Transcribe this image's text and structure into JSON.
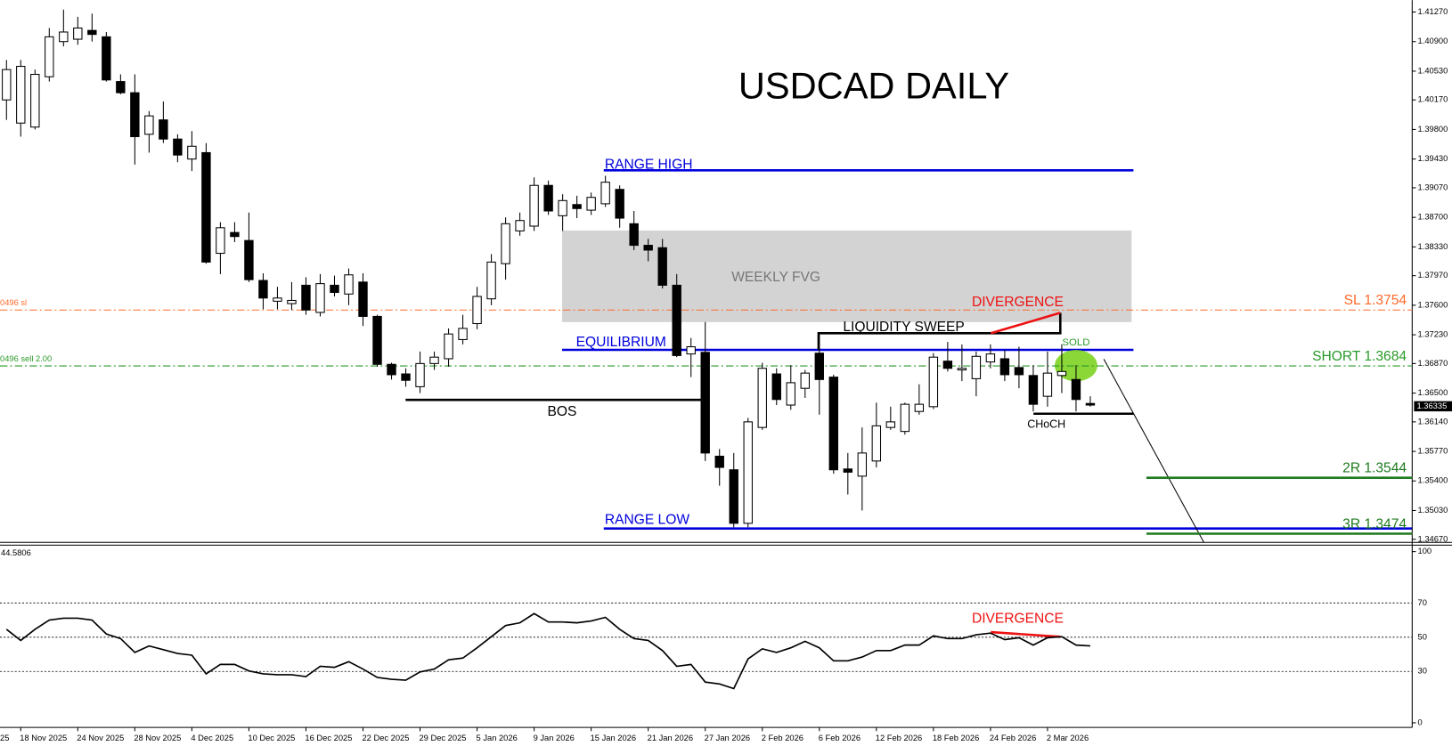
{
  "chart_data": [
    {
      "type": "candlestick",
      "title": "USDCAD DAILY",
      "categories": [
        null,
        "18 Nov 2025",
        null,
        null,
        null,
        "24 Nov 2025",
        null,
        null,
        null,
        "28 Nov 2025",
        null,
        null,
        null,
        "4 Dec 2025",
        null,
        null,
        null,
        "10 Dec 2025",
        null,
        null,
        null,
        "16 Dec 2025",
        null,
        null,
        null,
        "22 Dec 2025",
        null,
        null,
        null,
        "29 Dec 2025",
        null,
        null,
        null,
        "5 Jan 2026",
        null,
        null,
        null,
        "9 Jan 2026",
        null,
        null,
        null,
        "15 Jan 2026",
        null,
        null,
        null,
        "21 Jan 2026",
        null,
        null,
        null,
        "27 Jan 2026",
        null,
        null,
        null,
        "2 Feb 2026",
        null,
        null,
        null,
        "6 Feb 2026",
        null,
        null,
        null,
        "12 Feb 2026",
        null,
        null,
        null,
        "18 Feb 2026",
        null,
        null,
        null,
        "24 Feb 2026",
        null,
        null,
        null,
        "2 Mar 2026",
        null,
        null,
        null
      ],
      "clipped_x_label": "25",
      "open": [
        1.4017,
        1.3988,
        1.3983,
        1.4046,
        1.409,
        1.4093,
        1.4104,
        1.4096,
        1.404,
        1.4026,
        1.3974,
        1.3992,
        1.3968,
        1.3943,
        1.3951,
        1.3825,
        1.3851,
        1.3841,
        1.3791,
        1.3765,
        1.3762,
        1.3785,
        1.3751,
        1.3785,
        1.3774,
        1.3789,
        1.3746,
        1.3686,
        1.3674,
        1.3658,
        1.3687,
        1.3693,
        1.3717,
        1.3737,
        1.3768,
        1.3812,
        1.3853,
        1.3859,
        1.391,
        1.3872,
        1.3886,
        1.3879,
        1.3887,
        1.3905,
        1.3862,
        1.3835,
        1.3832,
        1.3785,
        1.3699,
        1.3701,
        1.3571,
        1.3554,
        1.3487,
        1.3607,
        1.3674,
        1.3635,
        1.3656,
        1.37,
        1.367,
        1.3555,
        1.3546,
        1.3565,
        1.3607,
        1.3602,
        1.3627,
        1.3633,
        1.369,
        1.3679,
        1.3668,
        1.3689,
        1.3693,
        1.3682,
        1.3672,
        1.3646,
        1.3672,
        1.3667,
        1.3637
      ],
      "high": [
        1.4067,
        1.4067,
        1.4055,
        1.4107,
        1.413,
        1.4121,
        1.4125,
        1.4102,
        1.4049,
        1.4049,
        1.4003,
        1.4015,
        1.3974,
        1.3978,
        1.3963,
        1.3864,
        1.3864,
        1.3876,
        1.38,
        1.3783,
        1.3789,
        1.3795,
        1.3799,
        1.3797,
        1.3806,
        1.38,
        1.3748,
        1.3688,
        1.3681,
        1.3702,
        1.3702,
        1.3731,
        1.3748,
        1.3783,
        1.3824,
        1.387,
        1.3876,
        1.392,
        1.3916,
        1.3899,
        1.3897,
        1.3901,
        1.3922,
        1.391,
        1.3878,
        1.3843,
        1.3843,
        1.3799,
        1.3719,
        1.3739,
        1.358,
        1.3575,
        1.3619,
        1.3688,
        1.3681,
        1.3685,
        1.3679,
        1.3723,
        1.3673,
        1.3575,
        1.3607,
        1.3638,
        1.3633,
        1.3638,
        1.3661,
        1.37,
        1.3714,
        1.3711,
        1.3702,
        1.3711,
        1.3704,
        1.3708,
        1.3685,
        1.3702,
        1.3711,
        1.3685,
        1.3646
      ],
      "low": [
        1.3992,
        1.3971,
        1.398,
        1.404,
        1.4084,
        1.4086,
        1.409,
        1.404,
        1.4024,
        1.3936,
        1.3951,
        1.3963,
        1.3939,
        1.3928,
        1.3812,
        1.3799,
        1.3839,
        1.3789,
        1.3755,
        1.3755,
        1.3754,
        1.3748,
        1.3746,
        1.3771,
        1.376,
        1.3734,
        1.3683,
        1.3667,
        1.3658,
        1.365,
        1.3679,
        1.3683,
        1.3711,
        1.373,
        1.376,
        1.3792,
        1.3847,
        1.3853,
        1.3873,
        1.3853,
        1.3869,
        1.3873,
        1.3883,
        1.3857,
        1.3829,
        1.3815,
        1.3781,
        1.3695,
        1.367,
        1.3565,
        1.3534,
        1.3482,
        1.3482,
        1.3604,
        1.3635,
        1.3629,
        1.3644,
        1.3623,
        1.3549,
        1.3523,
        1.3503,
        1.3557,
        1.3604,
        1.3598,
        1.3623,
        1.363,
        1.3677,
        1.3665,
        1.3646,
        1.3681,
        1.3665,
        1.3656,
        1.3627,
        1.3633,
        1.365,
        1.3627,
        1.3633
      ],
      "close": [
        1.4055,
        1.4059,
        1.4049,
        1.4096,
        1.4102,
        1.4107,
        1.4099,
        1.4042,
        1.4026,
        1.3971,
        1.3997,
        1.3968,
        1.3948,
        1.3959,
        1.3814,
        1.3857,
        1.3846,
        1.3792,
        1.3769,
        1.3769,
        1.3766,
        1.3754,
        1.3787,
        1.3776,
        1.3798,
        1.3746,
        1.3686,
        1.3673,
        1.3666,
        1.3687,
        1.3695,
        1.3724,
        1.3731,
        1.3771,
        1.3814,
        1.3862,
        1.3866,
        1.391,
        1.3878,
        1.3891,
        1.3881,
        1.3895,
        1.3914,
        1.3869,
        1.3835,
        1.3829,
        1.3785,
        1.3697,
        1.3708,
        1.3575,
        1.3557,
        1.3487,
        1.3614,
        1.3681,
        1.3642,
        1.3663,
        1.3675,
        1.3667,
        1.3554,
        1.3551,
        1.3575,
        1.3609,
        1.3614,
        1.3636,
        1.3636,
        1.3695,
        1.3681,
        1.3681,
        1.3696,
        1.3699,
        1.3673,
        1.3673,
        1.3636,
        1.3675,
        1.3677,
        1.3642,
        1.3635
      ],
      "colors": {
        "up": "#ffffff",
        "down": "#000000"
      },
      "ylim": [
        1.3462,
        1.4142
      ],
      "yticks": [
        {
          "value": 1.4127,
          "label": "1.41270"
        },
        {
          "value": 1.409,
          "label": "1.40900"
        },
        {
          "value": 1.4053,
          "label": "1.40530"
        },
        {
          "value": 1.4017,
          "label": "1.40170"
        },
        {
          "value": 1.398,
          "label": "1.39800"
        },
        {
          "value": 1.3943,
          "label": "1.39430"
        },
        {
          "value": 1.3907,
          "label": "1.39070"
        },
        {
          "value": 1.387,
          "label": "1.38700"
        },
        {
          "value": 1.3833,
          "label": "1.38330"
        },
        {
          "value": 1.3797,
          "label": "1.37970"
        },
        {
          "value": 1.376,
          "label": "1.37600"
        },
        {
          "value": 1.3723,
          "label": "1.37230"
        },
        {
          "value": 1.3687,
          "label": "1.36870"
        },
        {
          "value": 1.365,
          "label": "1.36500"
        },
        {
          "value": 1.3614,
          "label": "1.36140"
        },
        {
          "value": 1.3577,
          "label": "1.35770"
        },
        {
          "value": 1.354,
          "label": "1.35400"
        },
        {
          "value": 1.3503,
          "label": "1.35030"
        },
        {
          "value": 1.3467,
          "label": "1.34670"
        }
      ],
      "current_price": 1.36335,
      "levels": [
        {
          "label": "SL 1.3754",
          "value": 1.3754,
          "color": "#ff6a2a",
          "style": "dashdot",
          "order_label": "0496 sl"
        },
        {
          "label": "SHORT 1.3684",
          "value": 1.3684,
          "color": "#2a9a2a",
          "style": "dashdot",
          "order_label": "0496 sell 2.00"
        },
        {
          "label": "2R 1.3544",
          "value": 1.3544,
          "color": "#1f7a1f",
          "style": "solid"
        },
        {
          "label": "3R 1.3474",
          "value": 1.3474,
          "color": "#1f7a1f",
          "style": "solid"
        }
      ],
      "annotations": {
        "range_high": "RANGE HIGH",
        "range_low": "RANGE LOW",
        "equilibrium": "EQUILIBRIUM",
        "fvg": "WEEKLY FVG",
        "divergence": "DIVERGENCE",
        "sweep": "LIQUIDITY SWEEP",
        "sold": "SOLD",
        "bos": "BOS",
        "choch": "CHoCH"
      }
    },
    {
      "type": "line",
      "color": "#000000",
      "values": [
        54.6,
        48.1,
        54.6,
        60.0,
        61.1,
        61.1,
        60.0,
        51.9,
        49.2,
        41.1,
        44.9,
        42.7,
        40.5,
        39.5,
        28.6,
        34.1,
        34.1,
        30.3,
        28.6,
        28.1,
        28.1,
        27.0,
        33.0,
        32.4,
        35.7,
        31.4,
        26.5,
        25.4,
        24.9,
        29.7,
        31.4,
        36.8,
        37.8,
        43.8,
        50.3,
        56.8,
        58.4,
        63.8,
        58.9,
        58.9,
        58.4,
        59.5,
        61.6,
        54.6,
        49.2,
        48.1,
        42.2,
        33.0,
        34.1,
        23.8,
        22.7,
        20.0,
        37.3,
        43.2,
        41.1,
        43.8,
        47.6,
        43.8,
        36.2,
        36.2,
        38.4,
        42.2,
        42.2,
        45.4,
        45.4,
        50.8,
        49.2,
        49.2,
        51.4,
        52.4,
        48.6,
        49.7,
        45.4,
        49.7,
        50.3,
        45.4,
        44.9
      ],
      "current_value": 44.5806,
      "ylim": [
        0,
        100
      ],
      "yticks": [
        0,
        30,
        50,
        70,
        100
      ],
      "annotation": "DIVERGENCE"
    }
  ]
}
